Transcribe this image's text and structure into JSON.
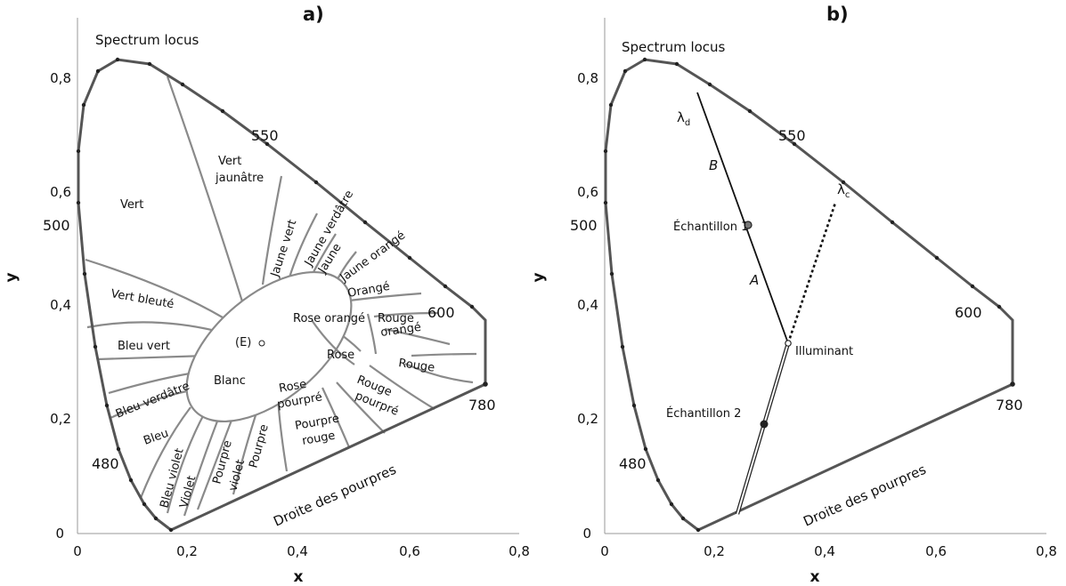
{
  "panel_a": {
    "title": "a)",
    "x_axis": {
      "label": "x",
      "ticks": [
        "0",
        "0,2",
        "0,4",
        "0,6",
        "0,8"
      ],
      "range": [
        0,
        0.8
      ]
    },
    "y_axis": {
      "label": "y",
      "ticks": [
        "0",
        "0,2",
        "0,4",
        "0,6",
        "0,8"
      ],
      "range": [
        0,
        0.9
      ]
    },
    "spectrum_label": "Spectrum locus",
    "purple_line_label": "Droite des pourpres",
    "wavelengths": {
      "w550": "550",
      "w500": "500",
      "w600": "600",
      "w480": "480",
      "w780": "780"
    },
    "white_point": "(E)",
    "regions": {
      "vert": "Vert",
      "vert_jaunatre_1": "Vert",
      "vert_jaunatre_2": "jaunâtre",
      "jaune_vert": "Jaune vert",
      "jaune_verdatre": "Jaune verdâtre",
      "jaune": "Jaune",
      "jaune_orange": "Jaune orangé",
      "orange": "Orangé",
      "vert_bleute": "Vert bleuté",
      "rose_orange": "Rose orangé",
      "rouge_orange_1": "Rouge",
      "rouge_orange_2": "orangé",
      "bleu_vert": "Bleu vert",
      "rose": "Rose",
      "rouge": "Rouge",
      "blanc": "Blanc",
      "bleu_verdatre": "Bleu verdâtre",
      "rose_pourpre_1": "Rose",
      "rose_pourpre_2": "pourpré",
      "rouge_pourpre_1": "Rouge",
      "rouge_pourpre_2": "pourpré",
      "pourpre_rouge_1": "Pourpre",
      "pourpre_rouge_2": "rouge",
      "bleu": "Bleu",
      "pourpre": "Pourpre",
      "pourpre_violet_1": "Pourpre",
      "pourpre_violet_2": "violet",
      "violet": "Violet",
      "bleu_violet": "Bleu violet"
    }
  },
  "panel_b": {
    "title": "b)",
    "x_axis": {
      "label": "x",
      "ticks": [
        "0",
        "0,2",
        "0,4",
        "0,6",
        "0,8"
      ],
      "range": [
        0,
        0.8
      ]
    },
    "y_axis": {
      "label": "y",
      "ticks": [
        "0",
        "0,2",
        "0,4",
        "0,6",
        "0,8"
      ],
      "range": [
        0,
        0.9
      ]
    },
    "spectrum_label": "Spectrum locus",
    "purple_line_label": "Droite des pourpres",
    "wavelengths": {
      "w550": "550",
      "w500": "500",
      "w600": "600",
      "w480": "480",
      "w780": "780"
    },
    "lambda_d": "λ",
    "lambda_d_sub": "d",
    "lambda_c": "λ",
    "lambda_c_sub": "c",
    "segment_b": "B",
    "segment_a": "A",
    "sample_1": "Échantillon 1",
    "sample_2": "Échantillon 2",
    "illuminant": "Illuminant",
    "points": {
      "illuminant_xy": [
        0.333,
        0.333
      ],
      "sample_1_xy": [
        0.264,
        0.54
      ],
      "sample_2_xy": [
        0.291,
        0.191
      ],
      "lambda_d_xy": [
        0.169,
        0.8
      ],
      "lambda_c_xy": [
        0.405,
        0.585
      ],
      "purple_hit_xy": [
        0.238,
        0.034
      ]
    }
  },
  "colors": {
    "locus": "#555555",
    "boundary": "#8a8a8a",
    "text": "#111111"
  }
}
